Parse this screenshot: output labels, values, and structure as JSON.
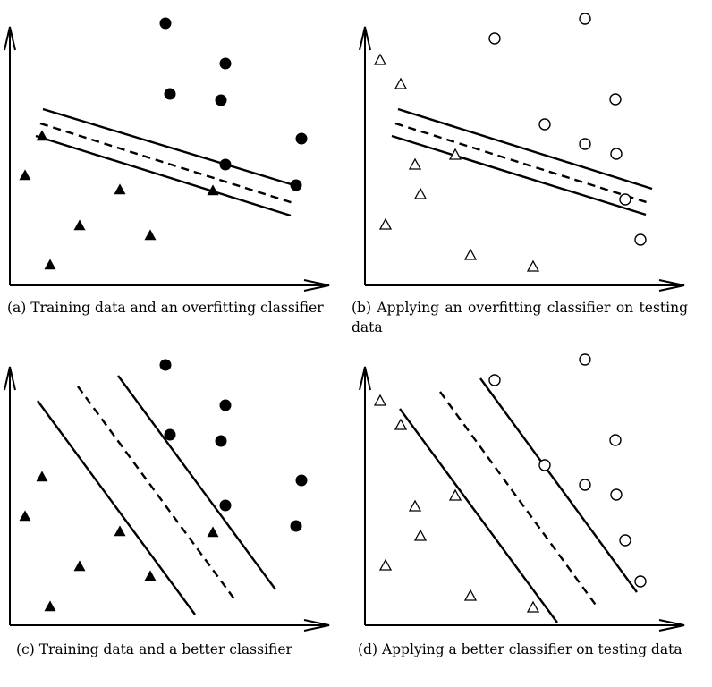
{
  "panels": [
    {
      "id": "a",
      "caption": "(a) Training data and an overfitting classifier",
      "marker_style": "filled",
      "circles": [
        [
          185,
          26
        ],
        [
          252,
          71
        ],
        [
          190,
          105
        ],
        [
          247,
          112
        ],
        [
          337,
          155
        ],
        [
          252,
          184
        ],
        [
          331,
          207
        ]
      ],
      "triangles": [
        [
          47,
          152
        ],
        [
          28,
          196
        ],
        [
          134,
          212
        ],
        [
          238,
          213
        ],
        [
          89,
          252
        ],
        [
          168,
          263
        ],
        [
          56,
          296
        ]
      ],
      "margin_lines": [
        [
          [
            48,
            122
          ],
          [
            332,
            208
          ]
        ],
        [
          [
            40,
            152
          ],
          [
            325,
            241
          ]
        ]
      ],
      "boundary": [
        [
          45,
          138
        ],
        [
          328,
          227
        ]
      ]
    },
    {
      "id": "b",
      "caption": "(b) Applying an overfitting classifier on testing data",
      "marker_style": "hollow",
      "circles": [
        [
          553,
          43
        ],
        [
          654,
          21
        ],
        [
          688,
          111
        ],
        [
          609,
          139
        ],
        [
          654,
          161
        ],
        [
          689,
          172
        ],
        [
          699,
          223
        ],
        [
          716,
          268
        ]
      ],
      "triangles": [
        [
          425,
          67
        ],
        [
          448,
          94
        ],
        [
          509,
          173
        ],
        [
          464,
          184
        ],
        [
          470,
          217
        ],
        [
          431,
          251
        ],
        [
          526,
          285
        ],
        [
          596,
          298
        ]
      ],
      "margin_lines": [
        [
          [
            445,
            122
          ],
          [
            729,
            211
          ]
        ],
        [
          [
            438,
            152
          ],
          [
            722,
            240
          ]
        ]
      ],
      "boundary": [
        [
          442,
          138
        ],
        [
          726,
          227
        ]
      ]
    },
    {
      "id": "c",
      "caption": "(c) Training data and a better classifier",
      "marker_style": "filled",
      "circles": [
        [
          185,
          408
        ],
        [
          252,
          453
        ],
        [
          190,
          486
        ],
        [
          247,
          493
        ],
        [
          337,
          537
        ],
        [
          252,
          565
        ],
        [
          331,
          588
        ]
      ],
      "triangles": [
        [
          47,
          533
        ],
        [
          28,
          577
        ],
        [
          134,
          594
        ],
        [
          238,
          595
        ],
        [
          89,
          633
        ],
        [
          168,
          644
        ],
        [
          56,
          678
        ]
      ],
      "margin_lines": [
        [
          [
            42,
            448
          ],
          [
            218,
            687
          ]
        ],
        [
          [
            132,
            420
          ],
          [
            308,
            659
          ]
        ]
      ],
      "boundary": [
        [
          87,
          432
        ],
        [
          263,
          671
        ]
      ]
    },
    {
      "id": "d",
      "caption": "(d) Applying a better classifier on testing data",
      "marker_style": "hollow",
      "circles": [
        [
          553,
          425
        ],
        [
          654,
          402
        ],
        [
          688,
          492
        ],
        [
          609,
          520
        ],
        [
          654,
          542
        ],
        [
          689,
          553
        ],
        [
          699,
          604
        ],
        [
          716,
          650
        ]
      ],
      "triangles": [
        [
          425,
          448
        ],
        [
          448,
          475
        ],
        [
          509,
          554
        ],
        [
          464,
          566
        ],
        [
          470,
          599
        ],
        [
          431,
          632
        ],
        [
          526,
          666
        ],
        [
          596,
          679
        ]
      ],
      "margin_lines": [
        [
          [
            447,
            457
          ],
          [
            623,
            696
          ]
        ],
        [
          [
            537,
            423
          ],
          [
            712,
            662
          ]
        ]
      ],
      "boundary": [
        [
          492,
          438
        ],
        [
          668,
          679
        ]
      ]
    }
  ]
}
